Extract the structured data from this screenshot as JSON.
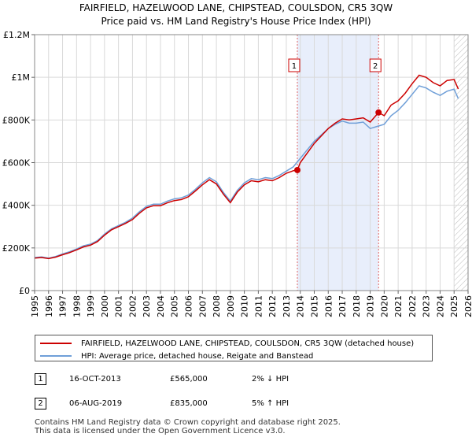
{
  "title_line1": "FAIRFIELD, HAZELWOOD LANE, CHIPSTEAD, COULSDON, CR5 3QW",
  "title_line2": "Price paid vs. HM Land Registry's House Price Index (HPI)",
  "legend": {
    "property_label": "FAIRFIELD, HAZELWOOD LANE, CHIPSTEAD, COULSDON, CR5 3QW (detached house)",
    "hpi_label": "HPI: Average price, detached house, Reigate and Banstead"
  },
  "colors": {
    "property": "#cc0000",
    "hpi": "#6f9fd8",
    "shade": "#e8eefb",
    "marker_line": "#e06666"
  },
  "sales": [
    {
      "id": "1",
      "date": "16-OCT-2013",
      "price": "£565,000",
      "hpi_change": "2% ↓ HPI"
    },
    {
      "id": "2",
      "date": "06-AUG-2019",
      "price": "£835,000",
      "hpi_change": "5% ↑ HPI"
    }
  ],
  "footer_line1": "Contains HM Land Registry data © Crown copyright and database right 2025.",
  "footer_line2": "This data is licensed under the Open Government Licence v3.0.",
  "chart_data": {
    "type": "line",
    "xlim": [
      1995,
      2026
    ],
    "ylim": [
      0,
      1200000
    ],
    "x_ticks": [
      "1995",
      "1996",
      "1997",
      "1998",
      "1999",
      "2000",
      "2001",
      "2002",
      "2003",
      "2004",
      "2005",
      "2006",
      "2007",
      "2008",
      "2009",
      "2010",
      "2011",
      "2012",
      "2013",
      "2014",
      "2015",
      "2016",
      "2017",
      "2018",
      "2019",
      "2020",
      "2021",
      "2022",
      "2023",
      "2024",
      "2025",
      "2026"
    ],
    "y_ticks": [
      {
        "value": 0,
        "label": "£0"
      },
      {
        "value": 200000,
        "label": "£200K"
      },
      {
        "value": 400000,
        "label": "£400K"
      },
      {
        "value": 600000,
        "label": "£600K"
      },
      {
        "value": 800000,
        "label": "£800K"
      },
      {
        "value": 1000000,
        "label": "£1M"
      },
      {
        "value": 1200000,
        "label": "£1.2M"
      }
    ],
    "grid": true,
    "legend_position": "below",
    "shaded_range": [
      2013.79,
      2019.6
    ],
    "hatched_from": 2025.0,
    "sale_markers": [
      {
        "label": "1",
        "x": 2013.79,
        "y": 565000
      },
      {
        "label": "2",
        "x": 2019.6,
        "y": 835000
      }
    ],
    "series": [
      {
        "name": "HPI: Average price, detached house, Reigate and Banstead",
        "x": [
          1995,
          1995.5,
          1996,
          1996.5,
          1997,
          1997.5,
          1998,
          1998.5,
          1999,
          1999.5,
          2000,
          2000.5,
          2001,
          2001.5,
          2002,
          2002.5,
          2003,
          2003.5,
          2004,
          2004.5,
          2005,
          2005.5,
          2006,
          2006.5,
          2007,
          2007.5,
          2008,
          2008.5,
          2009,
          2009.5,
          2010,
          2010.5,
          2011,
          2011.5,
          2012,
          2012.5,
          2013,
          2013.5,
          2014,
          2014.5,
          2015,
          2015.5,
          2016,
          2016.5,
          2017,
          2017.5,
          2018,
          2018.5,
          2019,
          2019.5,
          2020,
          2020.5,
          2021,
          2021.5,
          2022,
          2022.5,
          2023,
          2023.5,
          2024,
          2024.5,
          2025,
          2025.3
        ],
        "values": [
          155000,
          158000,
          152000,
          160000,
          172000,
          182000,
          195000,
          210000,
          218000,
          235000,
          265000,
          290000,
          305000,
          320000,
          340000,
          370000,
          395000,
          405000,
          405000,
          420000,
          430000,
          435000,
          448000,
          475000,
          505000,
          530000,
          510000,
          460000,
          420000,
          470000,
          505000,
          525000,
          520000,
          530000,
          525000,
          540000,
          560000,
          580000,
          620000,
          660000,
          700000,
          730000,
          760000,
          780000,
          795000,
          785000,
          785000,
          790000,
          760000,
          770000,
          780000,
          820000,
          845000,
          880000,
          920000,
          960000,
          950000,
          930000,
          915000,
          935000,
          945000,
          900000
        ]
      },
      {
        "name": "FAIRFIELD, HAZELWOOD LANE, CHIPSTEAD, COULSDON, CR5 3QW (detached house)",
        "x": [
          1995,
          1995.5,
          1996,
          1996.5,
          1997,
          1997.5,
          1998,
          1998.5,
          1999,
          1999.5,
          2000,
          2000.5,
          2001,
          2001.5,
          2002,
          2002.5,
          2003,
          2003.5,
          2004,
          2004.5,
          2005,
          2005.5,
          2006,
          2006.5,
          2007,
          2007.5,
          2008,
          2008.5,
          2009,
          2009.5,
          2010,
          2010.5,
          2011,
          2011.5,
          2012,
          2012.5,
          2013,
          2013.5,
          2013.79,
          2014,
          2014.5,
          2015,
          2015.5,
          2016,
          2016.5,
          2017,
          2017.5,
          2018,
          2018.5,
          2019,
          2019.6,
          2020,
          2020.5,
          2021,
          2021.5,
          2022,
          2022.5,
          2023,
          2023.5,
          2024,
          2024.5,
          2025,
          2025.3
        ],
        "values": [
          152000,
          155000,
          150000,
          157000,
          168000,
          178000,
          191000,
          205000,
          213000,
          230000,
          260000,
          285000,
          300000,
          315000,
          333000,
          363000,
          388000,
          398000,
          398000,
          412000,
          422000,
          427000,
          440000,
          467000,
          496000,
          520000,
          500000,
          452000,
          412000,
          462000,
          496000,
          515000,
          510000,
          520000,
          515000,
          530000,
          550000,
          562000,
          565000,
          600000,
          645000,
          690000,
          725000,
          760000,
          785000,
          805000,
          800000,
          805000,
          810000,
          790000,
          835000,
          820000,
          870000,
          890000,
          925000,
          970000,
          1010000,
          1000000,
          975000,
          960000,
          985000,
          990000,
          945000
        ]
      }
    ]
  }
}
